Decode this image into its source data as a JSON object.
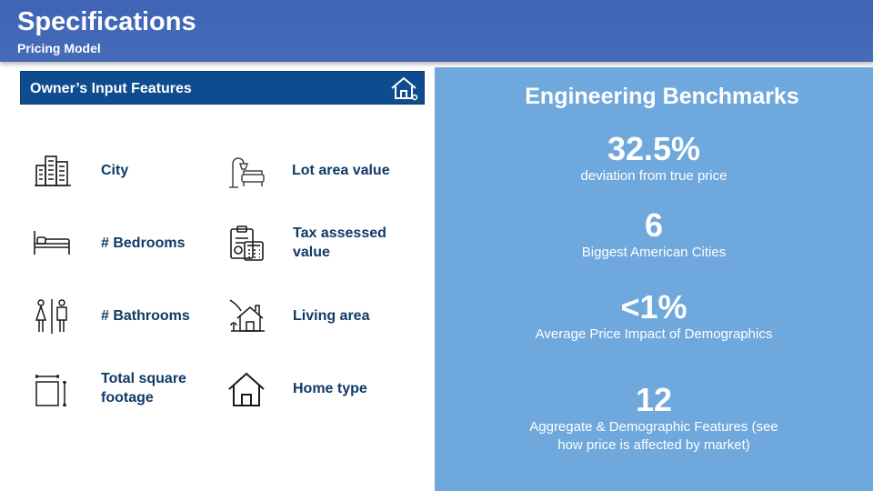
{
  "header": {
    "title": "Specifications",
    "subtitle": "Pricing Model"
  },
  "left": {
    "section_title": "Owner’s Input Features",
    "section_icon": "house-icon",
    "features": [
      {
        "label": "City",
        "icon": "city-buildings-icon"
      },
      {
        "label": "Lot area value",
        "icon": "lamp-sofa-icon"
      },
      {
        "label": "# Bedrooms",
        "icon": "bed-icon"
      },
      {
        "label": "Tax assessed value",
        "label_lines": [
          "Tax assessed",
          "value"
        ],
        "icon": "clipboard-calculator-icon"
      },
      {
        "label": "# Bathrooms",
        "icon": "restroom-icon"
      },
      {
        "label": "Living area",
        "icon": "house-tree-icon"
      },
      {
        "label": "Total square footage",
        "label_lines": [
          "Total square",
          "footage"
        ],
        "icon": "square-dimensions-icon"
      },
      {
        "label": "Home type",
        "icon": "home-outline-icon"
      }
    ]
  },
  "right": {
    "title": "Engineering Benchmarks",
    "stats": [
      {
        "value": "32.5%",
        "desc": "deviation from true price"
      },
      {
        "value": "6",
        "desc": "Biggest American Cities"
      },
      {
        "value": "<1%",
        "desc": "Average Price Impact of Demographics"
      },
      {
        "value": "12",
        "desc_lines": [
          "Aggregate & Demographic Features (see",
          "how price is affected by market)"
        ]
      }
    ]
  },
  "colors": {
    "header_bg": "#4068b8",
    "section_bar": "#0e4c8f",
    "right_panel": "#6fa8dc",
    "feature_text": "#0f3a66"
  }
}
